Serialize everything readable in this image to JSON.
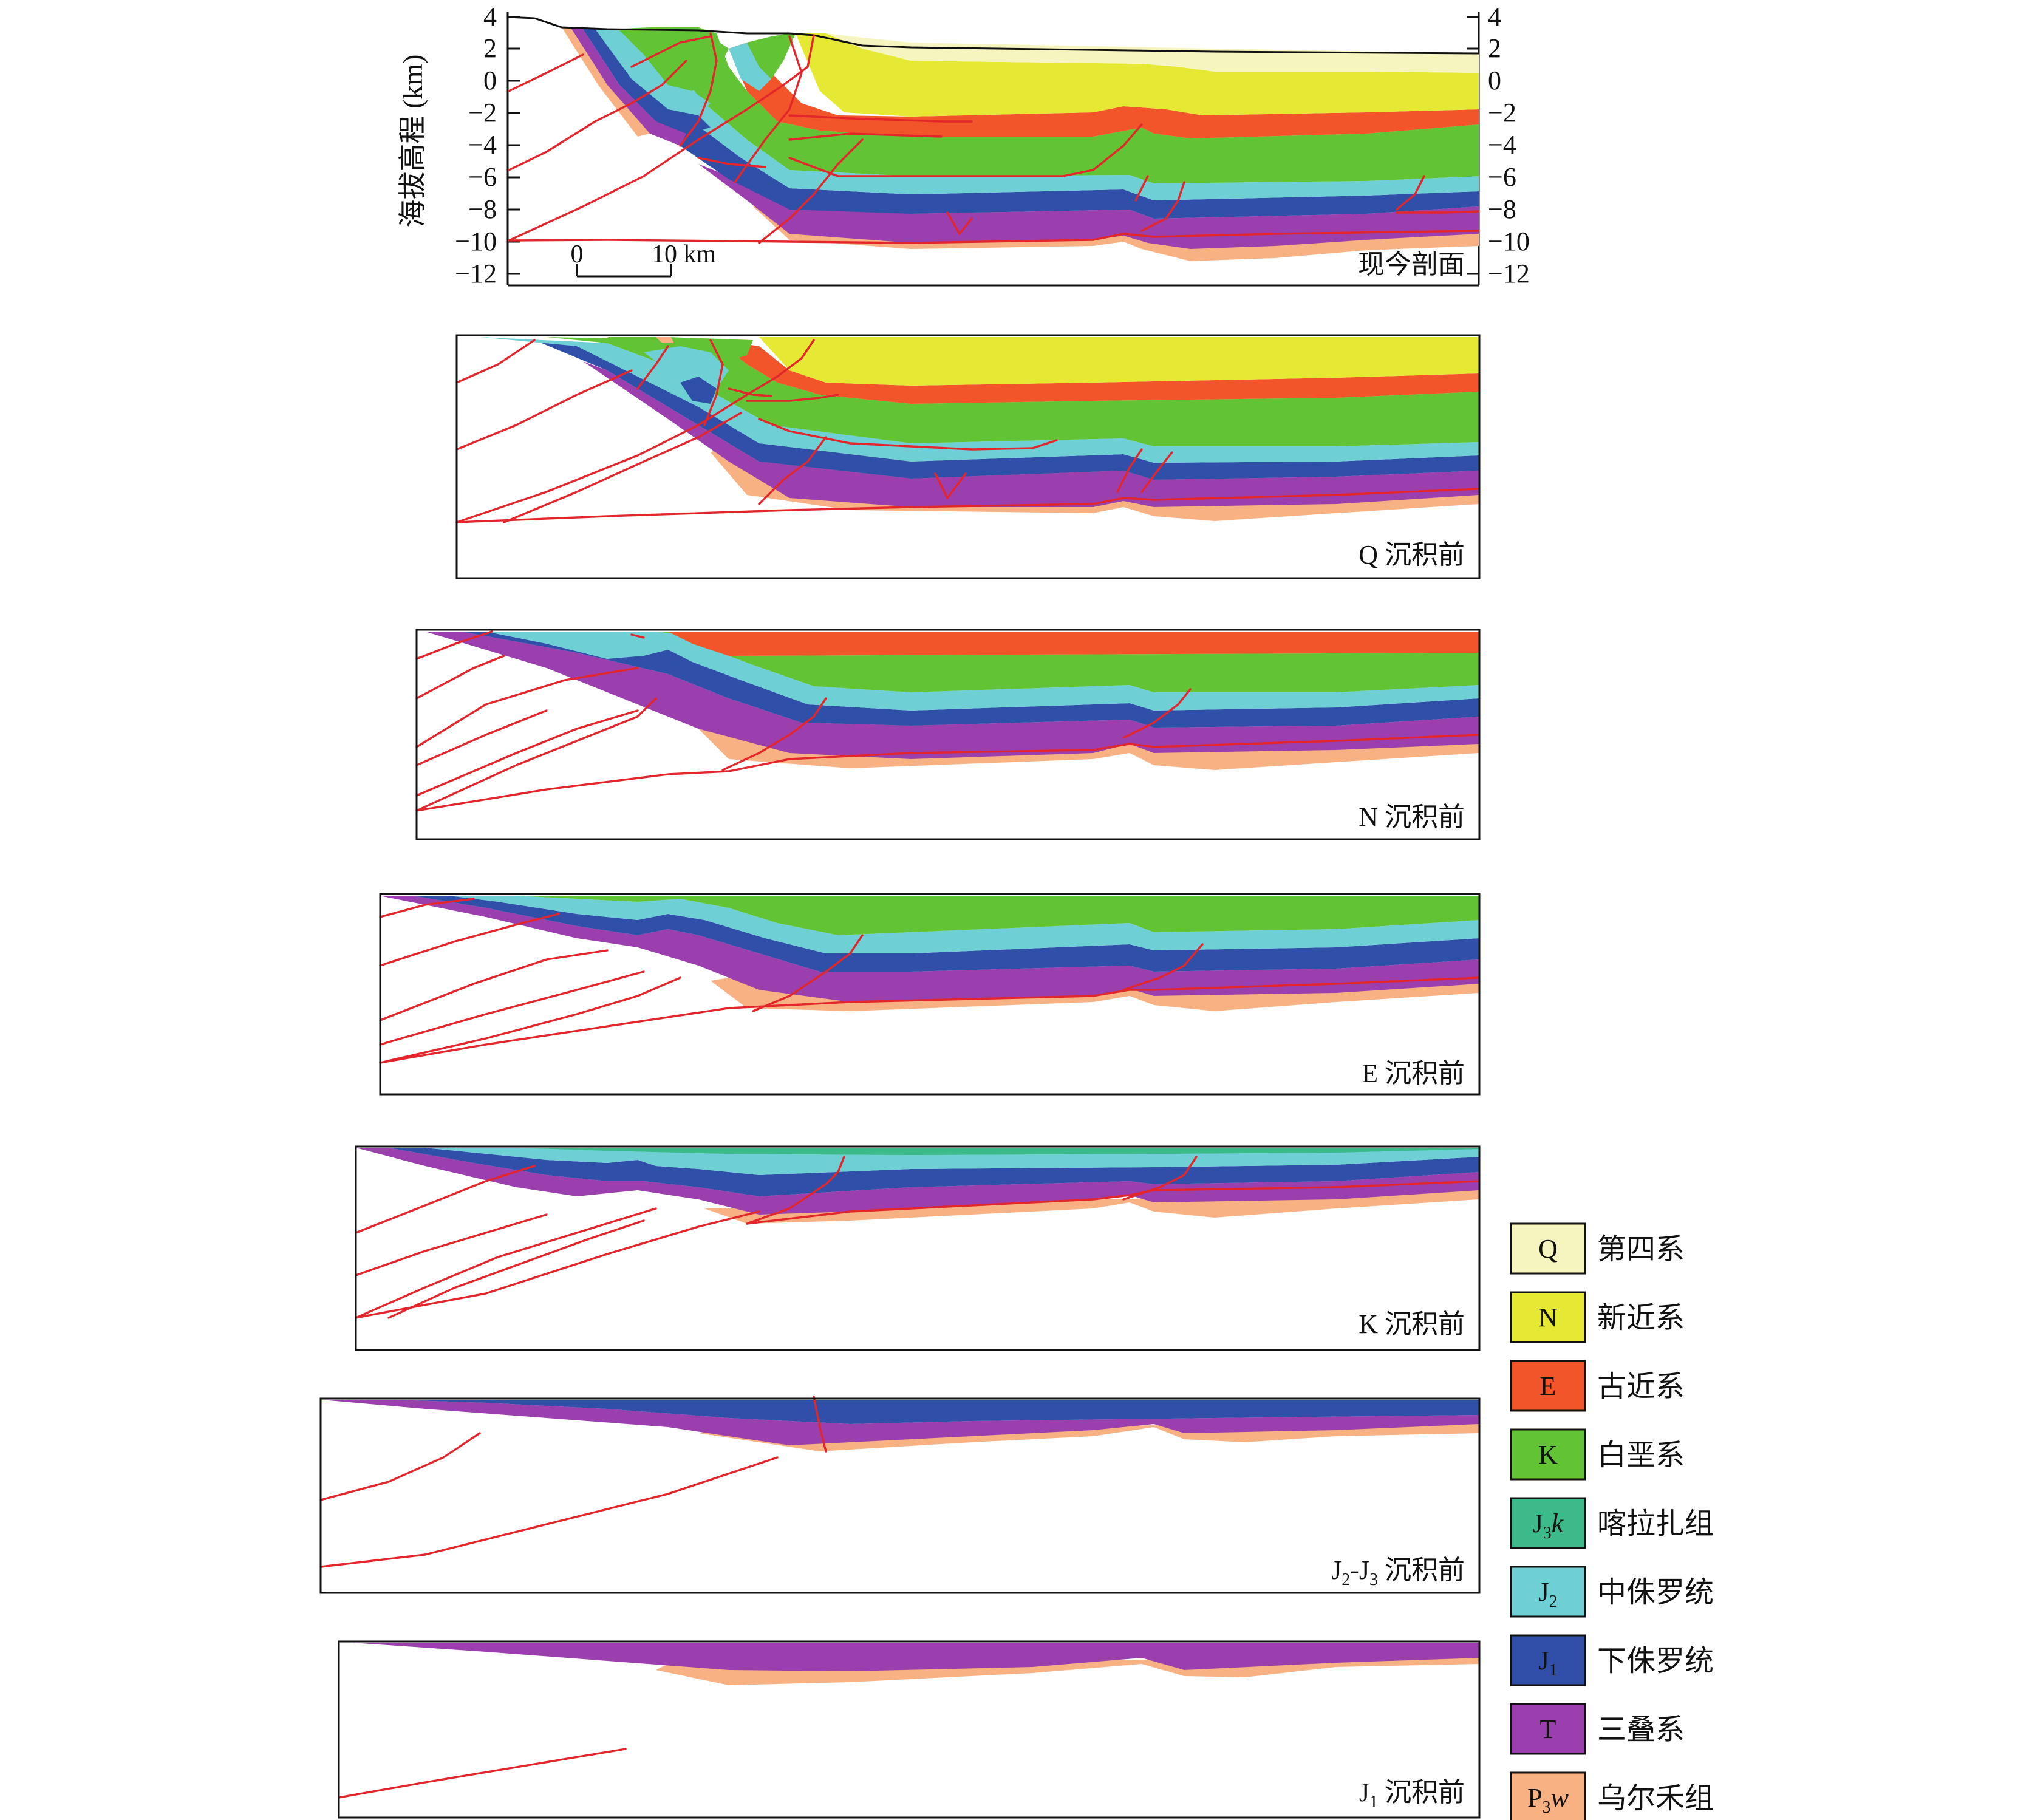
{
  "figure": {
    "y_axis_label": "海拔高程 (km)",
    "y_ticks": [
      "4",
      "2",
      "0",
      "−2",
      "−4",
      "−6",
      "−8",
      "−10",
      "−12"
    ],
    "y_ticks_right": [
      "4",
      "2",
      "0",
      "−2",
      "−4",
      "−6",
      "−8",
      "−10",
      "−12"
    ],
    "scale_bar": {
      "zero": "0",
      "end": "10 km"
    }
  },
  "panels": [
    {
      "id": "present",
      "label": "现今剖面"
    },
    {
      "id": "preQ",
      "label": "Q 沉积前"
    },
    {
      "id": "preN",
      "label": "N 沉积前"
    },
    {
      "id": "preE",
      "label": "E 沉积前"
    },
    {
      "id": "preK",
      "label": "K 沉积前"
    },
    {
      "id": "preJ2J3",
      "label": "J2-J3 沉积前",
      "label_parts": [
        "J",
        "2",
        "-J",
        "3",
        " 沉积前"
      ]
    },
    {
      "id": "preJ1",
      "label": "J1 沉积前",
      "label_parts": [
        "J",
        "1",
        " 沉积前"
      ]
    }
  ],
  "legend": [
    {
      "id": "Q",
      "code": "Q",
      "name": "第四系",
      "color": "#f7f5bf"
    },
    {
      "id": "N",
      "code": "N",
      "name": "新近系",
      "color": "#e6e934"
    },
    {
      "id": "E",
      "code": "E",
      "name": "古近系",
      "color": "#f2552a"
    },
    {
      "id": "K",
      "code": "K",
      "name": "白垩系",
      "color": "#62c434"
    },
    {
      "id": "J3k",
      "code": "J3k",
      "code_parts": [
        "J",
        "3",
        "k"
      ],
      "name": "喀拉扎组",
      "color": "#3dba8a"
    },
    {
      "id": "J2",
      "code": "J2",
      "code_parts": [
        "J",
        "2"
      ],
      "name": "中侏罗统",
      "color": "#6ecfd4"
    },
    {
      "id": "J1",
      "code": "J1",
      "code_parts": [
        "J",
        "1"
      ],
      "name": "下侏罗统",
      "color": "#2f4fa8"
    },
    {
      "id": "T",
      "code": "T",
      "name": "三叠系",
      "color": "#9b3fae"
    },
    {
      "id": "P3w",
      "code": "P3w",
      "code_parts": [
        "P",
        "3",
        "w"
      ],
      "name": "乌尔禾组",
      "color": "#f8b183"
    }
  ]
}
